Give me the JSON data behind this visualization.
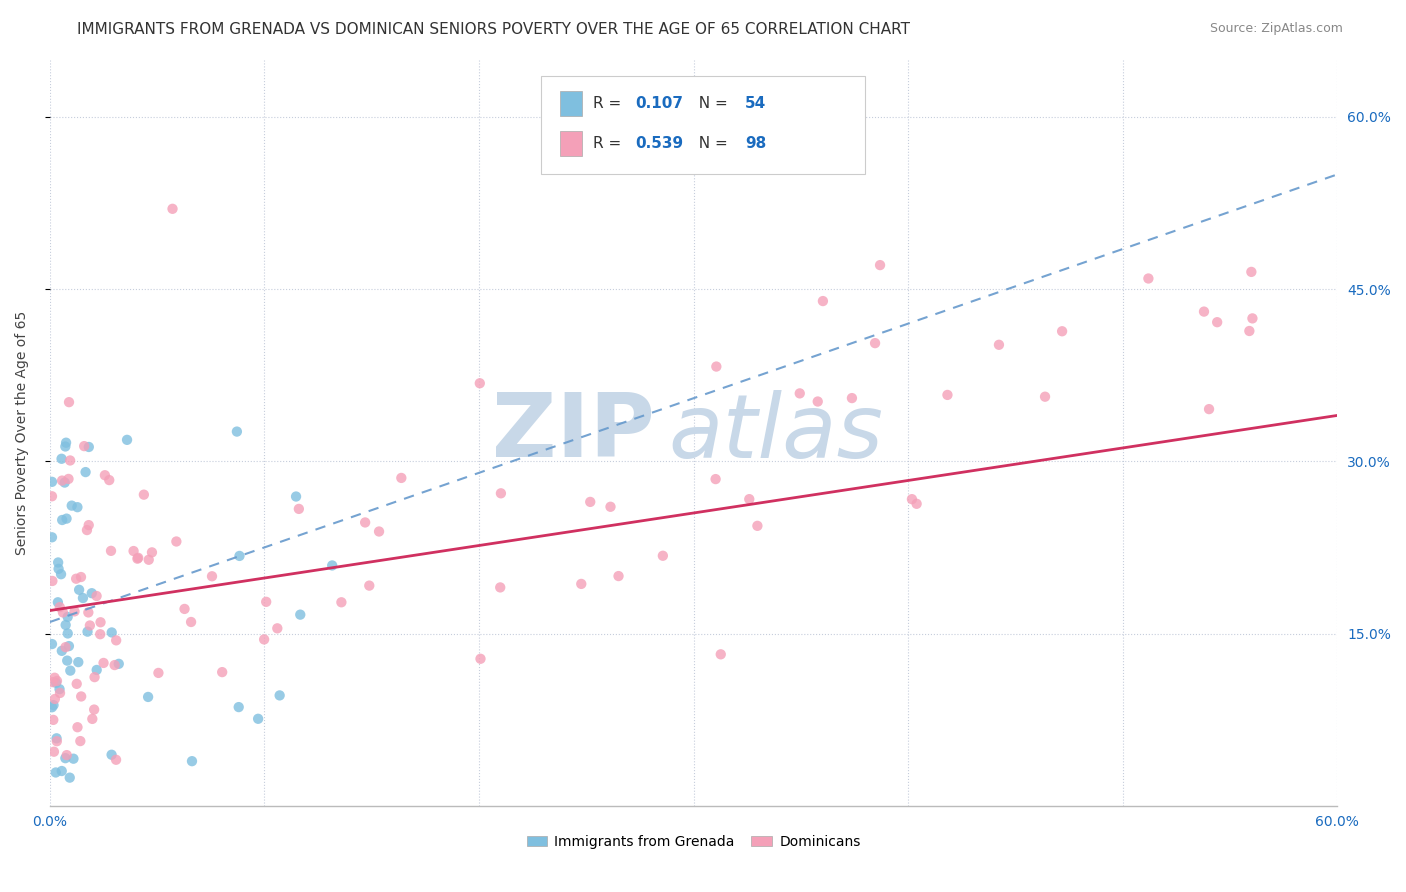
{
  "title": "IMMIGRANTS FROM GRENADA VS DOMINICAN SENIORS POVERTY OVER THE AGE OF 65 CORRELATION CHART",
  "source": "Source: ZipAtlas.com",
  "ylabel": "Seniors Poverty Over the Age of 65",
  "xlim": [
    0.0,
    0.6
  ],
  "ylim": [
    0.0,
    0.65
  ],
  "ytick_labels_right": [
    "15.0%",
    "30.0%",
    "45.0%",
    "60.0%"
  ],
  "yticks_right": [
    0.15,
    0.3,
    0.45,
    0.6
  ],
  "R_grenada": 0.107,
  "N_grenada": 54,
  "R_dominican": 0.539,
  "N_dominican": 98,
  "color_grenada": "#7fbfdf",
  "color_dominican": "#f4a0b8",
  "trendline_grenada_color": "#6699cc",
  "trendline_dominican_color": "#d03060",
  "watermark_zip": "ZIP",
  "watermark_atlas": "atlas",
  "watermark_color": "#c8d8e8",
  "background_color": "#ffffff",
  "legend_value_color": "#1a6bbf",
  "legend_label_color": "#333333",
  "title_fontsize": 11,
  "source_fontsize": 9,
  "axis_color": "#1a6bbf"
}
